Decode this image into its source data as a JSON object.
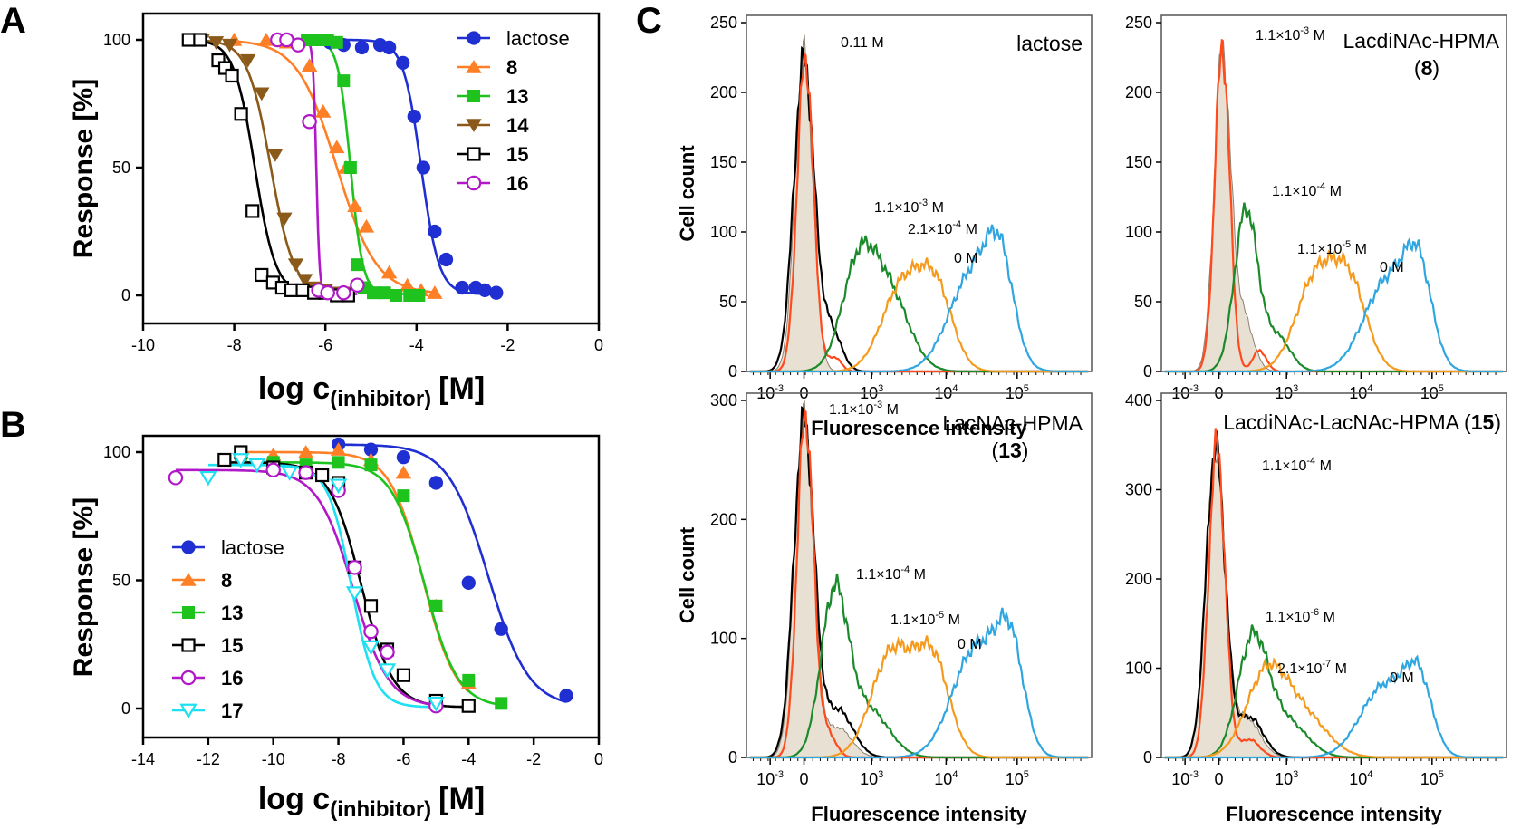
{
  "panels": {
    "A": "A",
    "B": "B",
    "C": "C"
  },
  "chart_data": [
    {
      "id": "A",
      "type": "scatter",
      "xlabel_main": "log c",
      "xlabel_sub": "(inhibitor)",
      "xlabel_unit": "[M]",
      "ylabel": "Response [%]",
      "xlim": [
        -10,
        0
      ],
      "ylim": [
        0,
        100
      ],
      "xticks": [
        -10,
        -8,
        -6,
        -4,
        -2,
        0
      ],
      "yticks": [
        0,
        50,
        100
      ],
      "legend_position": "top-right",
      "series": [
        {
          "name": "lactose",
          "color": "#1f2fd1",
          "marker": "circle-filled",
          "ic50": -3.9,
          "hill": 2.2,
          "x": [
            -5.9,
            -5.6,
            -5.2,
            -4.8,
            -4.6,
            -4.3,
            -4.05,
            -3.85,
            -3.6,
            -3.35,
            -3.0,
            -2.7,
            -2.5,
            -2.25
          ],
          "y": [
            99,
            98,
            97,
            98,
            97,
            91,
            70,
            50,
            25,
            14,
            3,
            3,
            2,
            1
          ]
        },
        {
          "name": "8",
          "color": "#ff7f27",
          "marker": "triangle-filled",
          "ic50": -5.75,
          "hill": 1.0,
          "x": [
            -8.0,
            -7.3,
            -6.85,
            -6.35,
            -6.05,
            -5.75,
            -5.55,
            -5.35,
            -5.1,
            -4.6,
            -4.2,
            -3.9,
            -3.6
          ],
          "y": [
            100,
            100,
            99,
            90,
            72,
            58,
            50,
            35,
            27,
            9,
            4,
            2,
            1
          ]
        },
        {
          "name": "13",
          "color": "#1ec31e",
          "marker": "square-filled",
          "ic50": -5.45,
          "hill": 3.2,
          "x": [
            -6.4,
            -6.2,
            -5.95,
            -5.75,
            -5.6,
            -5.45,
            -5.3,
            -5.15,
            -4.95,
            -4.7,
            -4.45,
            -4.15,
            -3.95
          ],
          "y": [
            100,
            100,
            100,
            99,
            84,
            50,
            12,
            3,
            1,
            1,
            0,
            0,
            0
          ]
        },
        {
          "name": "14",
          "color": "#8b5a1a",
          "marker": "triangle-down-filled",
          "ic50": -7.2,
          "hill": 1.7,
          "x": [
            -8.7,
            -8.4,
            -8.1,
            -7.7,
            -7.4,
            -7.1,
            -6.9,
            -6.65,
            -6.45,
            -6.25,
            -6.0,
            -5.7,
            -5.45
          ],
          "y": [
            100,
            99,
            98,
            92,
            79,
            55,
            30,
            12,
            6,
            3,
            2,
            1,
            1
          ]
        },
        {
          "name": "15",
          "color": "#000000",
          "marker": "square-open",
          "ic50": -7.55,
          "hill": 1.9,
          "x": [
            -9.0,
            -8.75,
            -8.35,
            -8.2,
            -8.05,
            -7.85,
            -7.6,
            -7.4,
            -7.15,
            -6.95,
            -6.75,
            -6.5,
            -6.25,
            -6.0,
            -5.75,
            -5.5
          ],
          "y": [
            100,
            100,
            92,
            89,
            86,
            71,
            33,
            8,
            5,
            3,
            2,
            2,
            1,
            1,
            0,
            0
          ]
        },
        {
          "name": "16",
          "color": "#b118c8",
          "marker": "circle-open",
          "ic50": -6.2,
          "hill": 12,
          "x": [
            -7.05,
            -6.85,
            -6.6,
            -6.35,
            -6.15,
            -5.95,
            -5.6,
            -5.3
          ],
          "y": [
            100,
            100,
            98,
            68,
            2,
            1,
            1,
            4
          ]
        }
      ]
    },
    {
      "id": "B",
      "type": "scatter",
      "xlabel_main": "log c",
      "xlabel_sub": "(inhibitor)",
      "xlabel_unit": "[M]",
      "ylabel": "Response [%]",
      "xlim": [
        -14,
        0
      ],
      "ylim": [
        0,
        100
      ],
      "xticks": [
        -14,
        -12,
        -10,
        -8,
        -6,
        -4,
        -2,
        0
      ],
      "yticks": [
        0,
        50,
        100
      ],
      "legend_position": "bottom-left",
      "series": [
        {
          "name": "lactose",
          "color": "#1f2fd1",
          "marker": "circle-filled",
          "ic50": -3.4,
          "top": 103,
          "hill": 0.7,
          "x": [
            -8.0,
            -7.0,
            -6.0,
            -5.0,
            -4.0,
            -3.0,
            -1.0
          ],
          "y": [
            103,
            101,
            98,
            88,
            49,
            31,
            5
          ]
        },
        {
          "name": "8",
          "color": "#ff7f27",
          "marker": "triangle-filled",
          "ic50": -5.4,
          "top": 100,
          "hill": 0.85,
          "x": [
            -11.0,
            -10.0,
            -9.0,
            -8.0,
            -7.0,
            -6.0,
            -5.0,
            -4.0
          ],
          "y": [
            100,
            99,
            100,
            101,
            97,
            92,
            40,
            10
          ]
        },
        {
          "name": "13",
          "color": "#1ec31e",
          "marker": "square-filled",
          "ic50": -5.35,
          "top": 96,
          "hill": 0.85,
          "x": [
            -11.0,
            -10.0,
            -9.0,
            -8.0,
            -7.0,
            -6.0,
            -5.0,
            -4.0,
            -3.0
          ],
          "y": [
            99,
            96,
            95,
            96,
            95,
            83,
            40,
            11,
            2
          ]
        },
        {
          "name": "15",
          "color": "#000000",
          "marker": "square-open",
          "ic50": -7.3,
          "top": 96,
          "hill": 0.9,
          "x": [
            -11.5,
            -11.0,
            -10.0,
            -9.0,
            -8.5,
            -8.0,
            -7.5,
            -7.0,
            -6.5,
            -6.0,
            -5.0,
            -4.0
          ],
          "y": [
            97,
            100,
            94,
            92,
            91,
            88,
            55,
            40,
            23,
            13,
            3,
            1
          ]
        },
        {
          "name": "16",
          "color": "#b118c8",
          "marker": "circle-open",
          "ic50": -7.55,
          "top": 93,
          "hill": 0.8,
          "x": [
            -13.0,
            -10.0,
            -9.0,
            -8.0,
            -7.5,
            -7.0,
            -6.5,
            -5.0
          ],
          "y": [
            90,
            93,
            92,
            85,
            55,
            30,
            22,
            1
          ]
        },
        {
          "name": "17",
          "color": "#1fe0f0",
          "marker": "triangle-down-open",
          "ic50": -7.6,
          "top": 95,
          "hill": 1.2,
          "x": [
            -12.0,
            -11.0,
            -10.5,
            -9.5,
            -8.0,
            -7.5,
            -7.0,
            -6.5,
            -5.0
          ],
          "y": [
            90,
            97,
            95,
            92,
            87,
            45,
            24,
            15,
            2
          ]
        }
      ]
    },
    {
      "id": "C1",
      "type": "area",
      "title": "lactose",
      "title_bold": "",
      "xlabel": "Fluorescence intensity",
      "ylabel": "Cell count",
      "ylim": [
        0,
        250
      ],
      "yticks": [
        0,
        50,
        100,
        150,
        200,
        250
      ],
      "xtick_labels": [
        "10",
        "-3",
        "0",
        "10",
        "3",
        "10",
        "4",
        "10",
        "5"
      ],
      "annotations": [
        {
          "base": "0.11 M",
          "exp": "",
          "exp_suffix": ""
        },
        {
          "base": "1.1×10",
          "exp": "-3",
          "exp_suffix": " M"
        },
        {
          "base": "2.1×10",
          "exp": "-4",
          "exp_suffix": " M"
        },
        {
          "base": "0 M",
          "exp": "",
          "exp_suffix": ""
        }
      ],
      "series": [
        {
          "color": "#e7e0d3",
          "role": "negative-control",
          "fill": true,
          "peaks": [
            {
              "mu": 0.05,
              "sd": 0.13,
              "h": 228
            }
          ]
        },
        {
          "color": "#000000",
          "role": "negative-control-outline",
          "peaks": [
            {
              "mu": 0.05,
              "sd": 0.15,
              "h": 222
            },
            {
              "mu": 0.45,
              "sd": 0.15,
              "h": 30
            }
          ]
        },
        {
          "color": "#ff4a1c",
          "peaks": [
            {
              "mu": 0.07,
              "sd": 0.12,
              "h": 225
            },
            {
              "mu": 0.5,
              "sd": 0.1,
              "h": 10
            }
          ]
        },
        {
          "color": "#1a8a2a",
          "peaks": [
            {
              "mu": 0.85,
              "sd": 0.25,
              "h": 70
            },
            {
              "mu": 1.3,
              "sd": 0.3,
              "h": 55
            }
          ]
        },
        {
          "color": "#f59a1c",
          "peaks": [
            {
              "mu": 1.5,
              "sd": 0.3,
              "h": 60
            },
            {
              "mu": 2.0,
              "sd": 0.25,
              "h": 55
            }
          ]
        },
        {
          "color": "#2fa6e0",
          "peaks": [
            {
              "mu": 2.55,
              "sd": 0.35,
              "h": 70
            },
            {
              "mu": 2.95,
              "sd": 0.2,
              "h": 60
            }
          ]
        }
      ]
    },
    {
      "id": "C2",
      "type": "area",
      "title": "LacdiNAc-HPMA",
      "title_bold": "8",
      "xlabel": "",
      "ylabel": "",
      "ylim": [
        0,
        250
      ],
      "yticks": [
        0,
        50,
        100,
        150,
        200,
        250
      ],
      "xtick_labels": [
        "10",
        "-3",
        "0",
        "10",
        "3",
        "10",
        "4",
        "10",
        "5"
      ],
      "annotations": [
        {
          "base": "1.1×10",
          "exp": "-3",
          "exp_suffix": " M"
        },
        {
          "base": "1.1×10",
          "exp": "-4",
          "exp_suffix": " M"
        },
        {
          "base": "1.1×10",
          "exp": "-5",
          "exp_suffix": " M"
        },
        {
          "base": "0 M",
          "exp": "",
          "exp_suffix": ""
        }
      ],
      "series": [
        {
          "color": "#e7e0d3",
          "role": "negative-control",
          "fill": true,
          "peaks": [
            {
              "mu": 0.1,
              "sd": 0.12,
              "h": 225
            },
            {
              "mu": 0.4,
              "sd": 0.15,
              "h": 40
            }
          ]
        },
        {
          "color": "#ff4a1c",
          "peaks": [
            {
              "mu": 0.1,
              "sd": 0.11,
              "h": 232
            },
            {
              "mu": 0.65,
              "sd": 0.1,
              "h": 15
            }
          ]
        },
        {
          "color": "#1a8a2a",
          "peaks": [
            {
              "mu": 0.45,
              "sd": 0.17,
              "h": 115
            },
            {
              "mu": 0.9,
              "sd": 0.2,
              "h": 25
            }
          ]
        },
        {
          "color": "#f59a1c",
          "peaks": [
            {
              "mu": 1.5,
              "sd": 0.3,
              "h": 68
            },
            {
              "mu": 2.0,
              "sd": 0.25,
              "h": 55
            }
          ]
        },
        {
          "color": "#2fa6e0",
          "peaks": [
            {
              "mu": 2.55,
              "sd": 0.35,
              "h": 65
            },
            {
              "mu": 3.0,
              "sd": 0.2,
              "h": 60
            }
          ]
        }
      ]
    },
    {
      "id": "C3",
      "type": "area",
      "title": "LacNAc-HPMA",
      "title_bold": "13",
      "xlabel": "Fluorescence intensity",
      "ylabel": "Cell count",
      "ylim": [
        0,
        300
      ],
      "yticks": [
        0,
        100,
        200,
        300
      ],
      "xtick_labels": [
        "10",
        "-3",
        "0",
        "10",
        "3",
        "10",
        "4",
        "10",
        "5"
      ],
      "annotations": [
        {
          "base": "1.1×10",
          "exp": "-3",
          "exp_suffix": " M"
        },
        {
          "base": "1.1×10",
          "exp": "-4",
          "exp_suffix": " M"
        },
        {
          "base": "1.1×10",
          "exp": "-5",
          "exp_suffix": " M"
        },
        {
          "base": "0 M",
          "exp": "",
          "exp_suffix": ""
        }
      ],
      "series": [
        {
          "color": "#e7e0d3",
          "role": "negative-control",
          "fill": true,
          "peaks": [
            {
              "mu": 0.05,
              "sd": 0.14,
              "h": 285
            },
            {
              "mu": 0.55,
              "sd": 0.2,
              "h": 25
            }
          ]
        },
        {
          "color": "#000000",
          "role": "negative-control-outline",
          "peaks": [
            {
              "mu": 0.05,
              "sd": 0.15,
              "h": 280
            },
            {
              "mu": 0.55,
              "sd": 0.22,
              "h": 40
            }
          ]
        },
        {
          "color": "#ff4a1c",
          "peaks": [
            {
              "mu": 0.07,
              "sd": 0.12,
              "h": 288
            },
            {
              "mu": 0.4,
              "sd": 0.12,
              "h": 20
            }
          ]
        },
        {
          "color": "#1a8a2a",
          "peaks": [
            {
              "mu": 0.5,
              "sd": 0.2,
              "h": 135
            },
            {
              "mu": 1.0,
              "sd": 0.3,
              "h": 40
            }
          ]
        },
        {
          "color": "#f59a1c",
          "peaks": [
            {
              "mu": 1.35,
              "sd": 0.3,
              "h": 88
            },
            {
              "mu": 1.95,
              "sd": 0.25,
              "h": 80
            }
          ]
        },
        {
          "color": "#2fa6e0",
          "peaks": [
            {
              "mu": 2.6,
              "sd": 0.35,
              "h": 92
            },
            {
              "mu": 3.1,
              "sd": 0.2,
              "h": 80
            }
          ]
        }
      ]
    },
    {
      "id": "C4",
      "type": "area",
      "title": "LacdiNAc-LacNAc-HPMA",
      "title_bold": "15",
      "xlabel": "Fluorescence intensity",
      "ylabel": "",
      "ylim": [
        0,
        400
      ],
      "yticks": [
        0,
        100,
        200,
        300,
        400
      ],
      "xtick_labels": [
        "10",
        "-3",
        "0",
        "10",
        "3",
        "10",
        "4",
        "10",
        "5"
      ],
      "annotations": [
        {
          "base": "1.1×10",
          "exp": "-4",
          "exp_suffix": " M"
        },
        {
          "base": "1.1×10",
          "exp": "-6",
          "exp_suffix": " M"
        },
        {
          "base": "2.1×10",
          "exp": "-7",
          "exp_suffix": " M"
        },
        {
          "base": "0 M",
          "exp": "",
          "exp_suffix": ""
        }
      ],
      "series": [
        {
          "color": "#e7e0d3",
          "role": "negative-control",
          "fill": true,
          "peaks": [
            {
              "mu": 0.0,
              "sd": 0.14,
              "h": 340
            },
            {
              "mu": 0.45,
              "sd": 0.2,
              "h": 45
            }
          ]
        },
        {
          "color": "#000000",
          "role": "negative-control-outline",
          "peaks": [
            {
              "mu": 0.0,
              "sd": 0.14,
              "h": 345
            },
            {
              "mu": 0.5,
              "sd": 0.2,
              "h": 45
            }
          ]
        },
        {
          "color": "#ff4a1c",
          "peaks": [
            {
              "mu": 0.02,
              "sd": 0.12,
              "h": 350
            },
            {
              "mu": 0.5,
              "sd": 0.15,
              "h": 20
            }
          ]
        },
        {
          "color": "#1a8a2a",
          "peaks": [
            {
              "mu": 0.55,
              "sd": 0.22,
              "h": 130
            },
            {
              "mu": 1.05,
              "sd": 0.3,
              "h": 40
            }
          ]
        },
        {
          "color": "#f59a1c",
          "peaks": [
            {
              "mu": 0.75,
              "sd": 0.3,
              "h": 90
            },
            {
              "mu": 1.3,
              "sd": 0.35,
              "h": 45
            }
          ]
        },
        {
          "color": "#2fa6e0",
          "peaks": [
            {
              "mu": 2.5,
              "sd": 0.35,
              "h": 80
            },
            {
              "mu": 3.0,
              "sd": 0.2,
              "h": 75
            }
          ]
        }
      ]
    }
  ]
}
